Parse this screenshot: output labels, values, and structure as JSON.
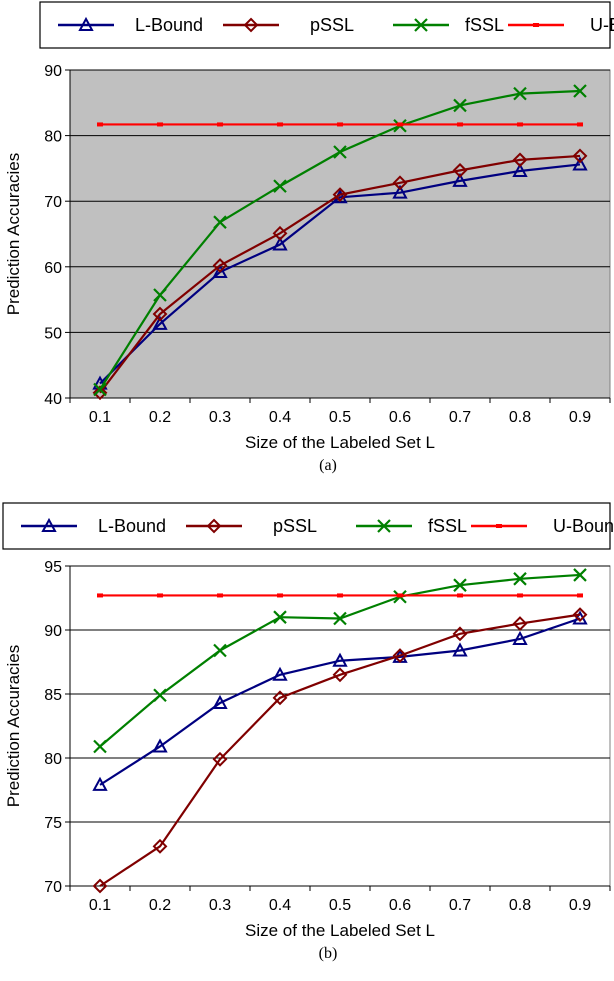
{
  "chart_data": [
    {
      "type": "line",
      "caption": "(a)",
      "xlabel": "Size of the Labeled Set L",
      "ylabel": "Prediction Accuracies",
      "x": [
        "0.1",
        "0.2",
        "0.3",
        "0.4",
        "0.5",
        "0.6",
        "0.7",
        "0.8",
        "0.9"
      ],
      "ylim": [
        40,
        90
      ],
      "yticks": [
        "40",
        "50",
        "60",
        "70",
        "80",
        "90"
      ],
      "grid": true,
      "legend_position": "top",
      "plot_background": "#c0c0c0",
      "series": [
        {
          "name": "L-Bound",
          "color": "#000080",
          "marker": "triangle",
          "values": [
            42.2,
            51.3,
            59.2,
            63.4,
            70.6,
            71.3,
            73.1,
            74.6,
            75.6
          ]
        },
        {
          "name": "pSSL",
          "color": "#800000",
          "marker": "diamond",
          "values": [
            40.8,
            52.8,
            60.2,
            65.1,
            71.0,
            72.8,
            74.7,
            76.3,
            76.9
          ]
        },
        {
          "name": "fSSL",
          "color": "#008000",
          "marker": "x",
          "values": [
            41.3,
            55.7,
            66.8,
            72.3,
            77.5,
            81.5,
            84.6,
            86.4,
            86.8
          ]
        },
        {
          "name": "U-Bound",
          "color": "#ff0000",
          "marker": "dash",
          "values": [
            81.7,
            81.7,
            81.7,
            81.7,
            81.7,
            81.7,
            81.7,
            81.7,
            81.7
          ]
        }
      ]
    },
    {
      "type": "line",
      "caption": "(b)",
      "xlabel": "Size of the Labeled Set L",
      "ylabel": "Prediction Accuracies",
      "x": [
        "0.1",
        "0.2",
        "0.3",
        "0.4",
        "0.5",
        "0.6",
        "0.7",
        "0.8",
        "0.9"
      ],
      "ylim": [
        70,
        95
      ],
      "yticks": [
        "70",
        "75",
        "80",
        "85",
        "90",
        "95"
      ],
      "grid": true,
      "legend_position": "top",
      "plot_background": "#ffffff",
      "series": [
        {
          "name": "L-Bound",
          "color": "#000080",
          "marker": "triangle",
          "values": [
            77.9,
            80.9,
            84.3,
            86.5,
            87.6,
            87.9,
            88.4,
            89.3,
            90.9
          ]
        },
        {
          "name": "pSSL",
          "color": "#800000",
          "marker": "diamond",
          "values": [
            70.0,
            73.1,
            79.9,
            84.7,
            86.5,
            88.0,
            89.7,
            90.5,
            91.2
          ]
        },
        {
          "name": "fSSL",
          "color": "#008000",
          "marker": "x",
          "values": [
            80.9,
            84.9,
            88.4,
            91.0,
            90.9,
            92.6,
            93.5,
            94.0,
            94.3
          ]
        },
        {
          "name": "U-Bound",
          "color": "#ff0000",
          "marker": "dash",
          "values": [
            92.7,
            92.7,
            92.7,
            92.7,
            92.7,
            92.7,
            92.7,
            92.7,
            92.7
          ]
        }
      ]
    }
  ]
}
